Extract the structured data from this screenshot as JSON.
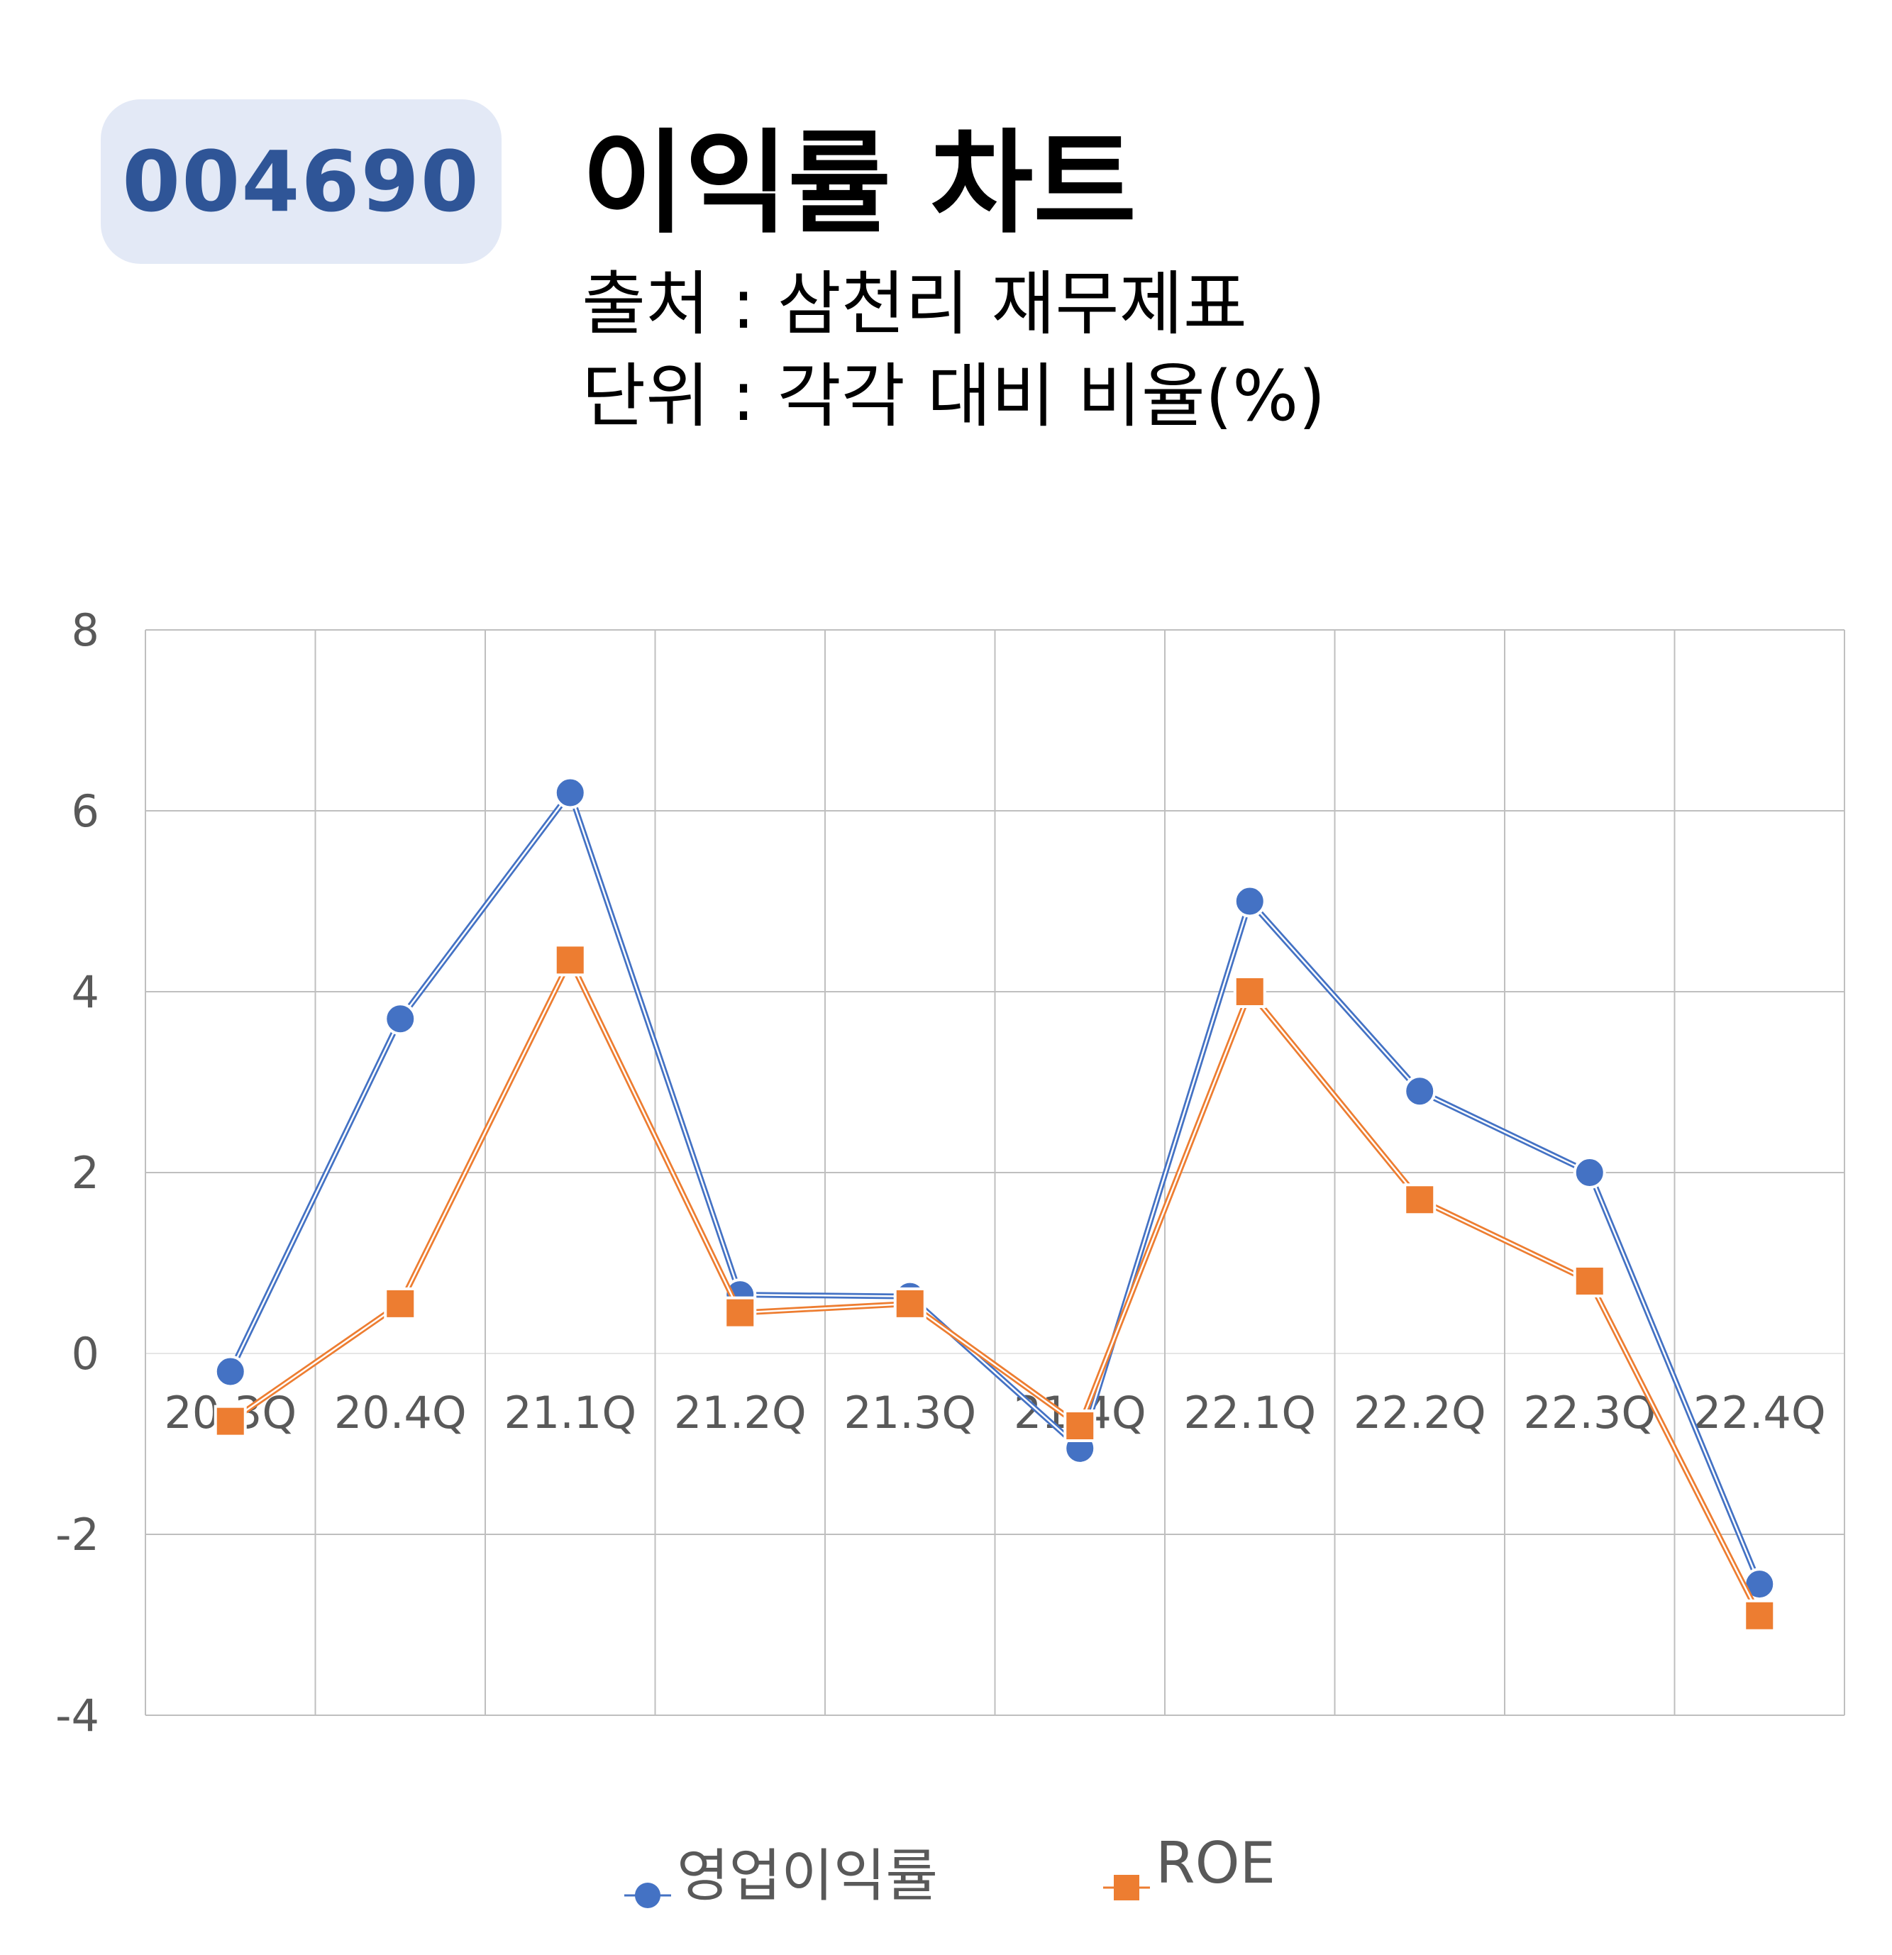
{
  "header": {
    "ticker": "004690",
    "title": "이익률 차트",
    "source": "출처 : 삼천리 재무제표",
    "unit": "단위 : 각각 대비 비율(%)"
  },
  "colors": {
    "series1": "#4472c4",
    "series2": "#ed7d31",
    "badge_bg": "#e3e9f6",
    "badge_text": "#2f5597",
    "grid": "#bfbfbf",
    "tick_text": "#595959"
  },
  "chart_data": {
    "type": "line",
    "categories": [
      "20.3Q",
      "20.4Q",
      "21.1Q",
      "21.2Q",
      "21.3Q",
      "21.4Q",
      "22.1Q",
      "22.2Q",
      "22.3Q",
      "22.4Q"
    ],
    "series": [
      {
        "name": "영업이익률",
        "marker": "circle",
        "values": [
          -0.2,
          3.7,
          6.2,
          0.65,
          0.63,
          -1.05,
          5.0,
          2.9,
          2.0,
          -2.55
        ]
      },
      {
        "name": "ROE",
        "marker": "square",
        "values": [
          -0.75,
          0.55,
          4.35,
          0.45,
          0.55,
          -0.8,
          4.0,
          1.7,
          0.8,
          -2.9
        ]
      }
    ],
    "ylim": [
      -4,
      8
    ],
    "yticks": [
      "-4",
      "-2",
      "0",
      "2",
      "4",
      "6",
      "8"
    ],
    "grid": true,
    "legend": "bottom"
  }
}
